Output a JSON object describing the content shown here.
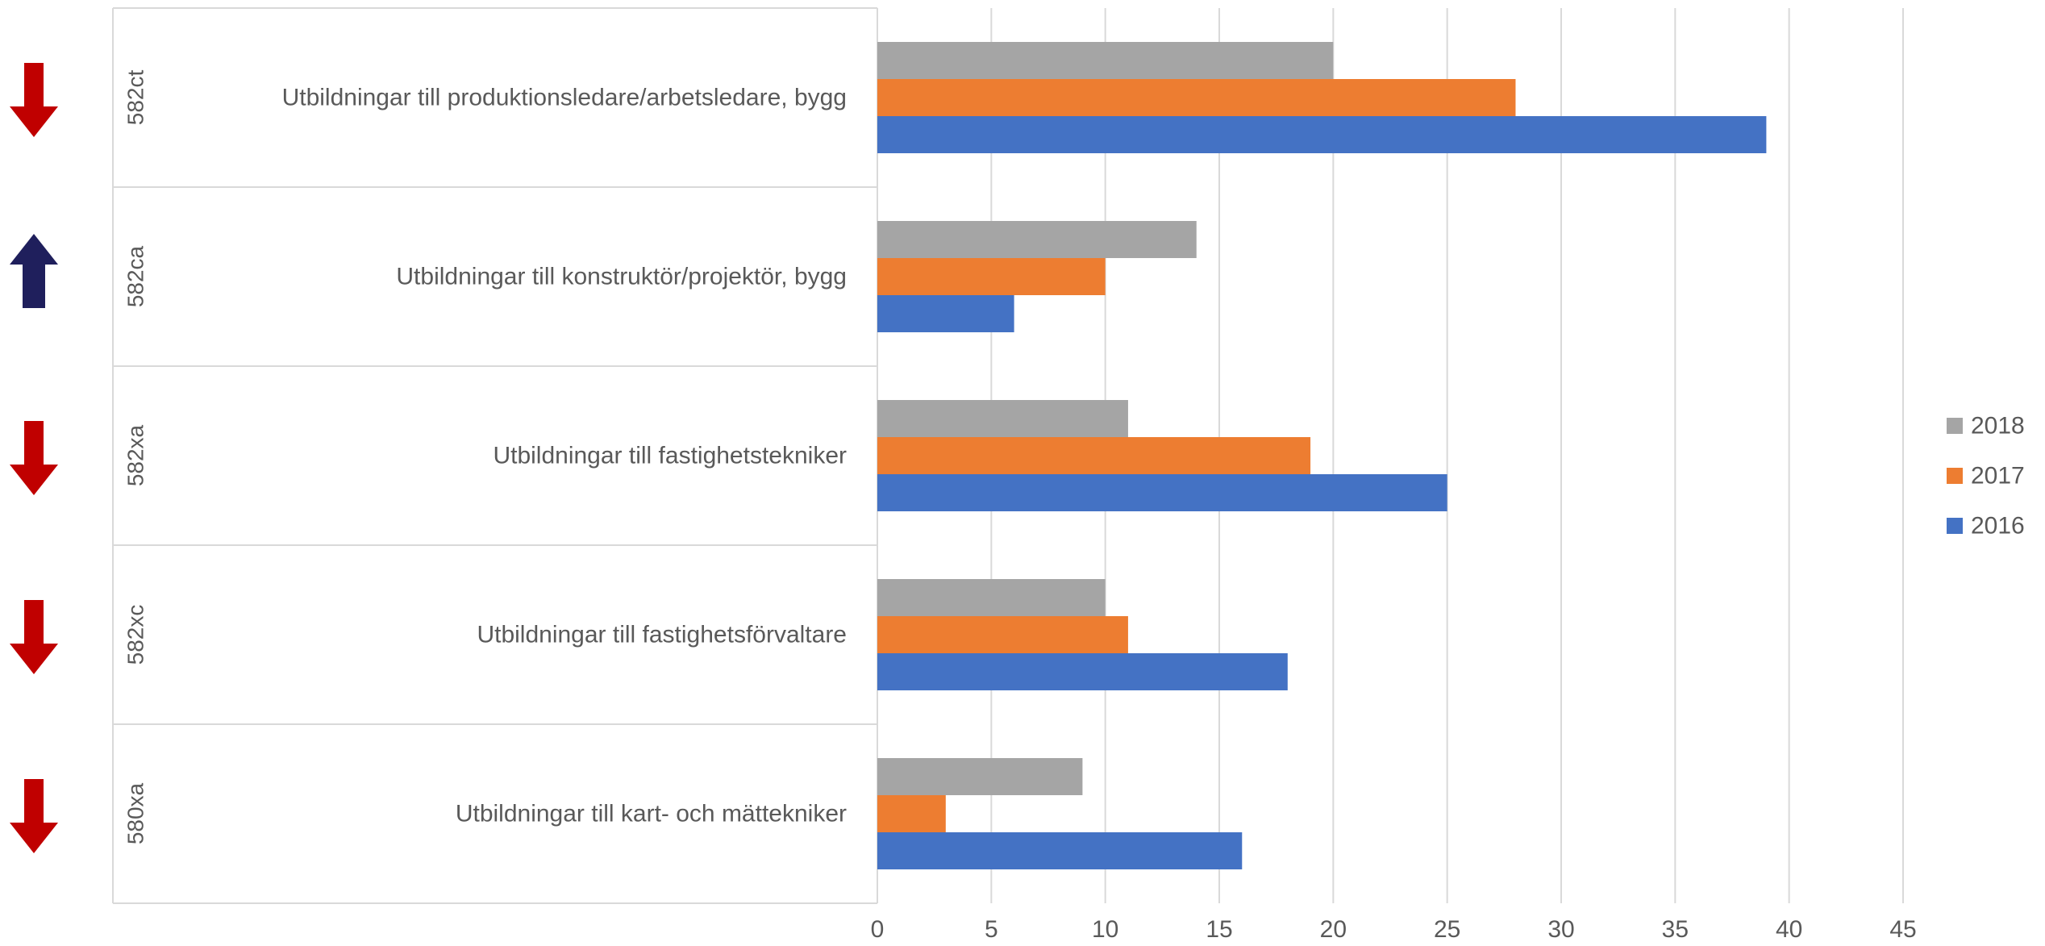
{
  "chart_data": {
    "type": "bar",
    "orientation": "horizontal",
    "title": "",
    "xlabel": "",
    "ylabel": "",
    "xlim": [
      0,
      45
    ],
    "x_ticks": [
      0,
      5,
      10,
      15,
      20,
      25,
      30,
      35,
      40,
      45
    ],
    "grid": "vertical",
    "legend_position": "right",
    "categories": [
      {
        "code": "582ct",
        "label": "Utbildningar till produktionsledare/arbetsledare, bygg",
        "trend": "down"
      },
      {
        "code": "582ca",
        "label": "Utbildningar till konstruktör/projektör, bygg",
        "trend": "up"
      },
      {
        "code": "582xa",
        "label": "Utbildningar till fastighetstekniker",
        "trend": "down"
      },
      {
        "code": "582xc",
        "label": "Utbildningar till fastighetsförvaltare",
        "trend": "down"
      },
      {
        "code": "580xa",
        "label": "Utbildningar till kart- och mättekniker",
        "trend": "down"
      }
    ],
    "series": [
      {
        "name": "2018",
        "color": "#A5A5A5",
        "values": [
          20,
          14,
          11,
          10,
          9
        ]
      },
      {
        "name": "2017",
        "color": "#ED7D31",
        "values": [
          28,
          10,
          19,
          11,
          3
        ]
      },
      {
        "name": "2016",
        "color": "#4472C4",
        "values": [
          39,
          6,
          25,
          18,
          16
        ]
      }
    ],
    "trend_colors": {
      "down": "#C00000",
      "up": "#1F1F5C"
    }
  }
}
